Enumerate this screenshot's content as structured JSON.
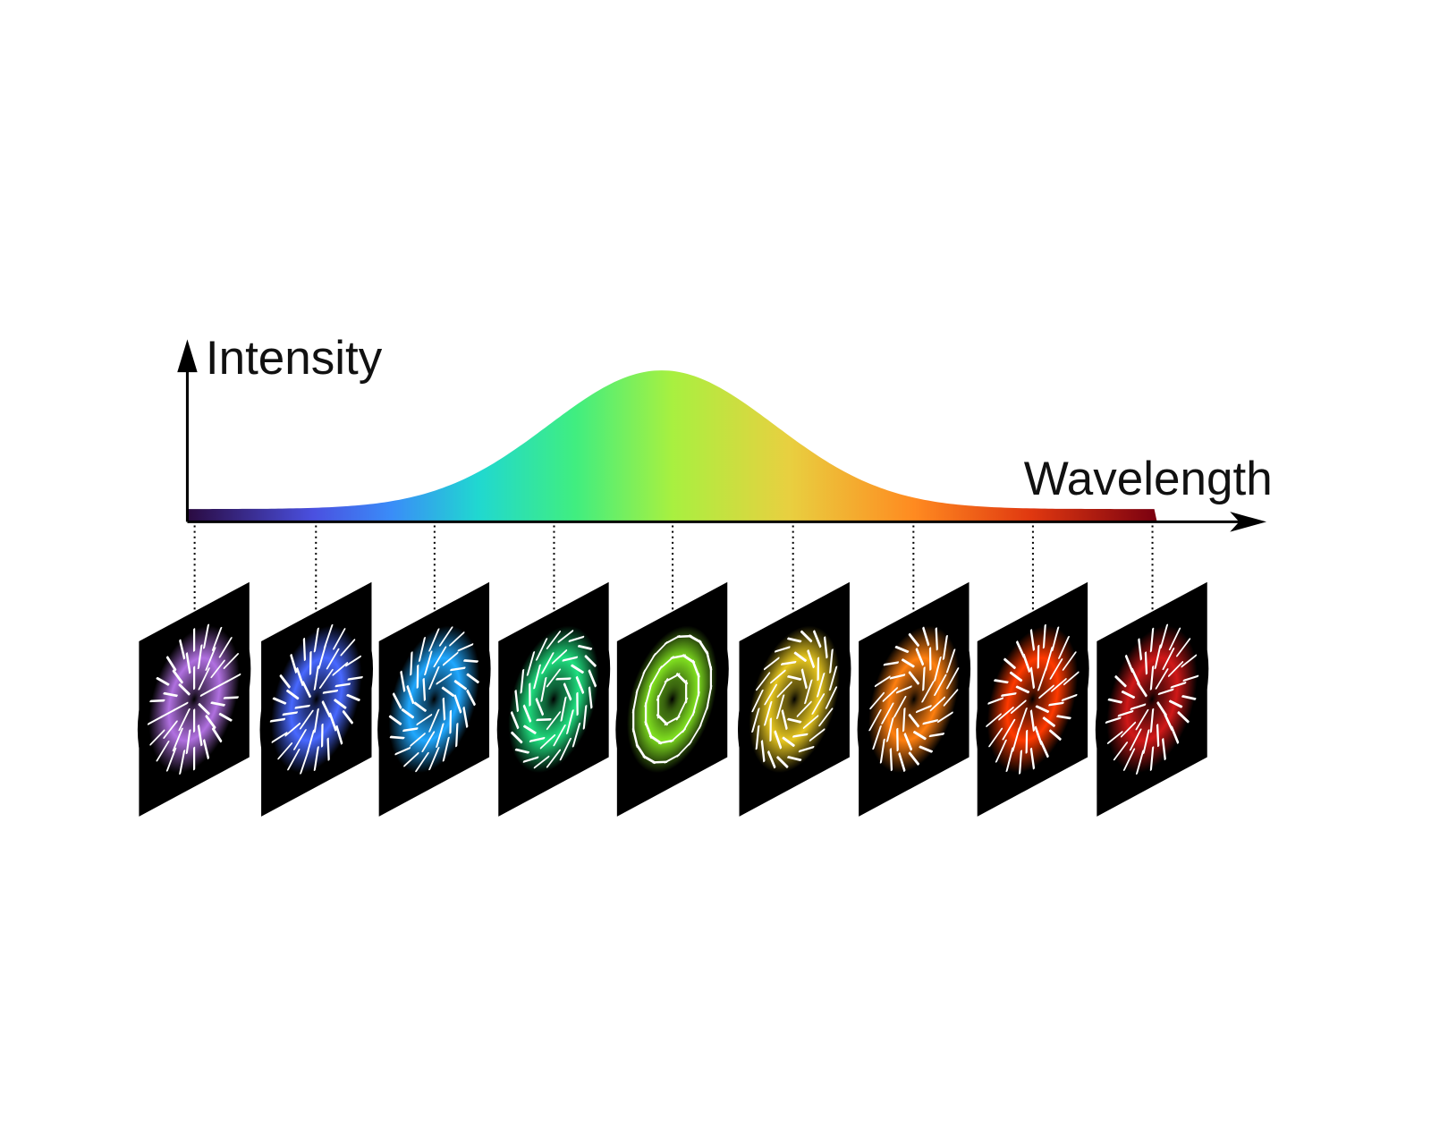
{
  "axes": {
    "y_label": "Intensity",
    "x_label": "Wavelength"
  }
}
